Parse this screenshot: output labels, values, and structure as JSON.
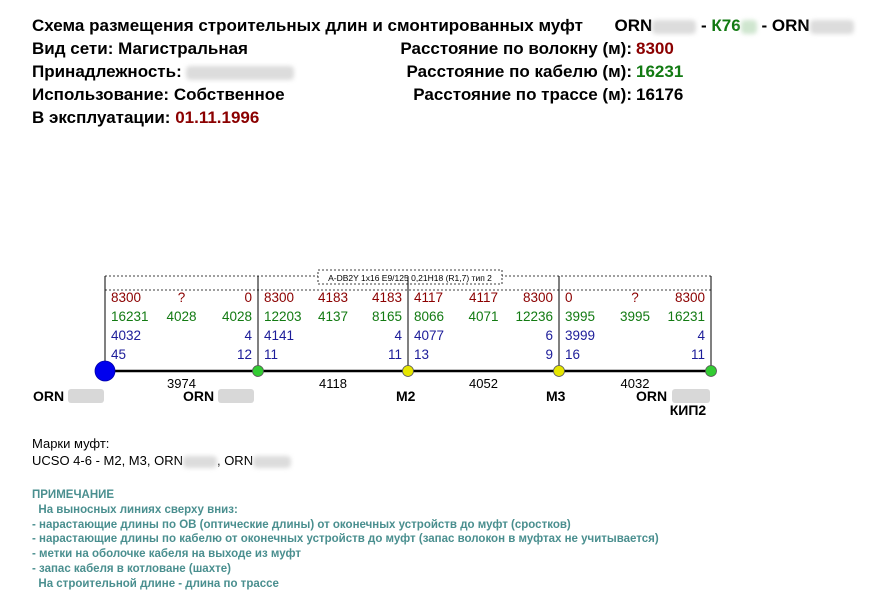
{
  "header": {
    "title": "Схема размещения строительных длин и смонтированных муфт",
    "endpoint_a": "ORN",
    "separator": "-",
    "middle": "К76",
    "endpoint_b": "ORN",
    "network_label": "Вид сети:",
    "network_value": "Магистральная",
    "owner_label": "Принадлежность:",
    "usage_label": "Использование:",
    "usage_value": "Собственное",
    "operation_label": "В эксплуатации:",
    "operation_value": "01.11.1996",
    "fiber_label": "Расстояние по волокну (м):",
    "fiber_value": "8300",
    "cable_label": "Расстояние по кабелю (м):",
    "cable_value": "16231",
    "route_label": "Расстояние по трассе (м):",
    "route_value": "16176"
  },
  "cable_type": "A-DB2Y 1x16 E9/125 0,21H18 (R1,7) тип 2",
  "columns": [
    {
      "rows": [
        "8300",
        "16231",
        "4032",
        "45"
      ],
      "align": "start"
    },
    {
      "rows": [
        "?",
        "4028",
        "",
        ""
      ],
      "align": "middle"
    },
    {
      "rows": [
        "0",
        "4028",
        "4",
        "12"
      ],
      "align": "end"
    },
    {
      "rows": [
        "8300",
        "12203",
        "4141",
        "11"
      ],
      "align": "start"
    },
    {
      "rows": [
        "4183",
        "4137",
        "",
        ""
      ],
      "align": "middle"
    },
    {
      "rows": [
        "4183",
        "8165",
        "4",
        "11"
      ],
      "align": "end"
    },
    {
      "rows": [
        "4117",
        "8066",
        "4077",
        "13"
      ],
      "align": "start"
    },
    {
      "rows": [
        "4117",
        "4071",
        "",
        ""
      ],
      "align": "middle"
    },
    {
      "rows": [
        "8300",
        "12236",
        "6",
        "9"
      ],
      "align": "end"
    },
    {
      "rows": [
        "0",
        "3995",
        "3999",
        "16"
      ],
      "align": "start"
    },
    {
      "rows": [
        "?",
        "3995",
        "",
        ""
      ],
      "align": "middle"
    },
    {
      "rows": [
        "8300",
        "16231",
        "4",
        "11"
      ],
      "align": "end"
    }
  ],
  "segments": [
    "3974",
    "4118",
    "4052",
    "4032"
  ],
  "nodes": [
    {
      "label": "ORN",
      "sublabel": "",
      "color": "#0000ee"
    },
    {
      "label": "ORN",
      "sublabel": "",
      "color": "#33cc33"
    },
    {
      "label": "M2",
      "sublabel": "",
      "color": "#e6e600"
    },
    {
      "label": "M3",
      "sublabel": "",
      "color": "#e6e600"
    },
    {
      "label": "ORN",
      "sublabel": "КИП2",
      "color": "#33cc33"
    }
  ],
  "marks": {
    "title": "Марки муфт:",
    "line_prefix": "UCSO 4-6  -  M2, M3, ORN",
    "line_mid": ", ORN"
  },
  "note": {
    "title": "ПРИМЕЧАНИЕ",
    "lines": [
      "  На выносных линиях сверху вниз:",
      "- нарастающие длины по ОВ (оптические длины) от оконечных устройств до муфт (сростков)",
      "- нарастающие длины по кабелю от оконечных устройств до муфт (запас волокон в муфтах не учитывается)",
      "- метки на оболочке кабеля на выходе из муфт",
      "- запас кабеля в котловане (шахте)",
      "  На строительной длине - длина по трассе"
    ]
  },
  "colors": {
    "fiber": "#8b0000",
    "cable": "#127a12",
    "mark": "#1c1c99",
    "note": "#4a8f8f"
  }
}
